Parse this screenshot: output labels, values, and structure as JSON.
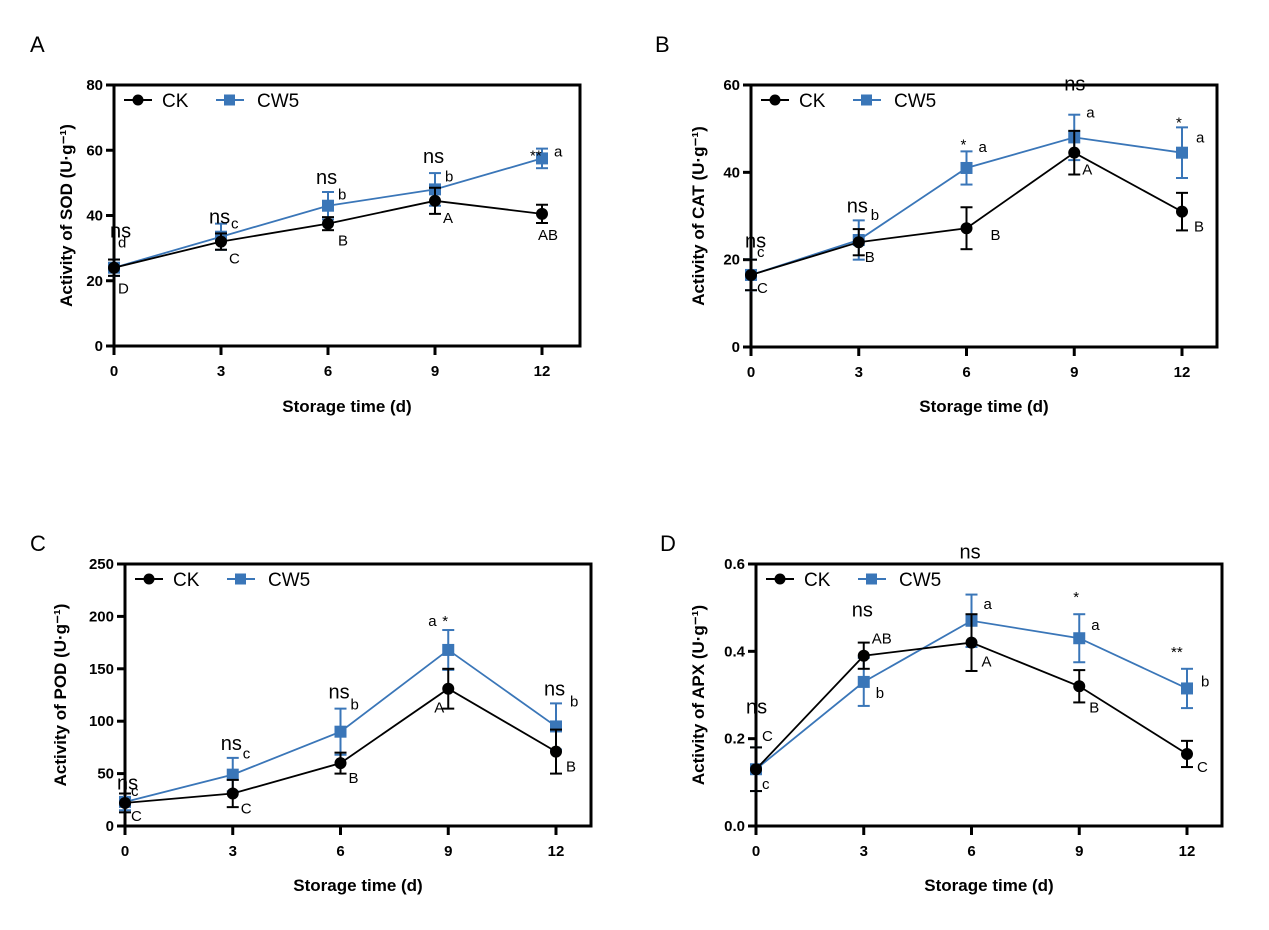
{
  "colors": {
    "ck": "#000000",
    "cw5": "#3a76b8"
  },
  "legend": [
    "CK",
    "CW5"
  ],
  "chart_data": [
    {
      "type": "line",
      "panel": "A",
      "title": "",
      "xlabel": "Storage time (d)",
      "ylabel": "Activity of SOD (U·g⁻¹)",
      "x": [
        0,
        3,
        6,
        9,
        12
      ],
      "xticks": [
        "0",
        "3",
        "6",
        "9",
        "12"
      ],
      "yticks": [
        "0",
        "20",
        "40",
        "60",
        "80"
      ],
      "ylim": [
        0,
        80
      ],
      "legend_position": "top-left",
      "series": [
        {
          "name": "CK",
          "values": [
            24,
            32,
            37.5,
            44.5,
            40.5
          ],
          "errors": [
            2.5,
            2.5,
            2,
            4,
            2.8
          ],
          "letters": [
            "D",
            "C",
            "B",
            "A",
            "AB"
          ]
        },
        {
          "name": "CW5",
          "values": [
            24,
            33.5,
            43,
            48,
            57.5
          ],
          "errors": [
            2.5,
            4,
            4.2,
            5,
            3
          ],
          "letters": [
            "d",
            "c",
            "b",
            "b",
            "a"
          ]
        }
      ],
      "significance": [
        "ns",
        "ns",
        "ns",
        "ns",
        "**"
      ]
    },
    {
      "type": "line",
      "panel": "B",
      "title": "",
      "xlabel": "Storage time (d)",
      "ylabel": "Activity of CAT (U·g⁻¹)",
      "x": [
        0,
        3,
        6,
        9,
        12
      ],
      "xticks": [
        "0",
        "3",
        "6",
        "9",
        "12"
      ],
      "yticks": [
        "0",
        "20",
        "40",
        "60"
      ],
      "ylim": [
        0,
        60
      ],
      "legend_position": "top-left",
      "series": [
        {
          "name": "CK",
          "values": [
            16.5,
            24,
            27.2,
            44.5,
            31
          ],
          "errors": [
            3.5,
            3,
            4.8,
            5,
            4.3
          ],
          "letters": [
            "C",
            "B",
            "B",
            "A",
            "B"
          ]
        },
        {
          "name": "CW5",
          "values": [
            16.5,
            24.5,
            41,
            48,
            44.5
          ],
          "errors": [
            3.5,
            4.5,
            3.8,
            5.2,
            5.8
          ],
          "letters": [
            "c",
            "b",
            "a",
            "a",
            "a"
          ]
        }
      ],
      "significance": [
        "ns",
        "ns",
        "*",
        "ns",
        "*"
      ]
    },
    {
      "type": "line",
      "panel": "C",
      "title": "",
      "xlabel": "Storage time (d)",
      "ylabel": "Activity of POD (U·g⁻¹)",
      "x": [
        0,
        3,
        6,
        9,
        12
      ],
      "xticks": [
        "0",
        "3",
        "6",
        "9",
        "12"
      ],
      "yticks": [
        "0",
        "50",
        "100",
        "150",
        "200",
        "250"
      ],
      "ylim": [
        0,
        250
      ],
      "legend_position": "top-left",
      "series": [
        {
          "name": "CK",
          "values": [
            22,
            31,
            60,
            131,
            71
          ],
          "errors": [
            9,
            13,
            10,
            19,
            21
          ],
          "letters": [
            "C",
            "C",
            "B",
            "A",
            "B"
          ]
        },
        {
          "name": "CW5",
          "values": [
            23,
            49,
            90,
            168,
            95
          ],
          "errors": [
            8,
            16,
            22,
            19,
            22
          ],
          "letters": [
            "c",
            "c",
            "b",
            "a",
            "b"
          ]
        }
      ],
      "significance": [
        "ns",
        "ns",
        "ns",
        "*",
        "ns"
      ]
    },
    {
      "type": "line",
      "panel": "D",
      "title": "",
      "xlabel": "Storage time (d)",
      "ylabel": "Activity of APX (U·g⁻¹)",
      "x": [
        0,
        3,
        6,
        9,
        12
      ],
      "xticks": [
        "0",
        "3",
        "6",
        "9",
        "12"
      ],
      "yticks": [
        "0.0",
        "0.2",
        "0.4",
        "0.6"
      ],
      "ylim": [
        0,
        0.6
      ],
      "legend_position": "top-left",
      "series": [
        {
          "name": "CK",
          "values": [
            0.13,
            0.39,
            0.42,
            0.32,
            0.165
          ],
          "errors": [
            0.05,
            0.03,
            0.065,
            0.037,
            0.03
          ],
          "letters": [
            "C",
            "AB",
            "A",
            "B",
            "C"
          ]
        },
        {
          "name": "CW5",
          "values": [
            0.13,
            0.33,
            0.47,
            0.43,
            0.315
          ],
          "errors": [
            0.05,
            0.055,
            0.06,
            0.055,
            0.045
          ],
          "letters": [
            "c",
            "b",
            "a",
            "a",
            "b"
          ]
        }
      ],
      "significance": [
        "ns",
        "ns",
        "ns",
        "*",
        "**"
      ]
    }
  ]
}
